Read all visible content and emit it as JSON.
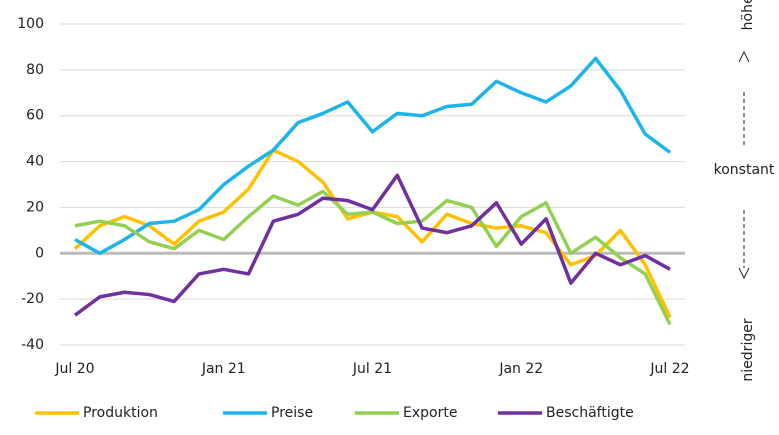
{
  "chart_data": {
    "type": "line",
    "categories": [
      "Jul 20",
      null,
      null,
      null,
      null,
      null,
      "Jan 21",
      null,
      null,
      null,
      null,
      null,
      "Jul 21",
      null,
      null,
      null,
      null,
      null,
      "Jan 22",
      null,
      null,
      null,
      null,
      null,
      "Jul 22"
    ],
    "series": [
      {
        "name": "Produktion",
        "color": "#ffc000",
        "values": [
          2,
          12,
          16,
          12,
          4,
          14,
          18,
          28,
          45,
          40,
          31,
          15,
          18,
          16,
          5,
          17,
          13,
          11,
          12,
          9,
          -5,
          -1,
          10,
          -5,
          -28
        ]
      },
      {
        "name": "Preise",
        "color": "#1cb4ec",
        "values": [
          6,
          0,
          6,
          13,
          14,
          19,
          30,
          38,
          45,
          57,
          61,
          66,
          53,
          61,
          60,
          64,
          65,
          75,
          70,
          66,
          73,
          85,
          71,
          52,
          44
        ]
      },
      {
        "name": "Exporte",
        "color": "#92d050",
        "values": [
          12,
          14,
          12,
          5,
          2,
          10,
          6,
          16,
          25,
          21,
          27,
          17,
          18,
          13,
          14,
          23,
          20,
          3,
          16,
          22,
          0,
          7,
          -2,
          -9,
          -31
        ]
      },
      {
        "name": "Beschäftigte",
        "color": "#7030a0",
        "values": [
          -27,
          -19,
          -17,
          -18,
          -21,
          -9,
          -7,
          -9,
          14,
          17,
          24,
          23,
          19,
          34,
          11,
          9,
          12,
          22,
          4,
          15,
          -13,
          0,
          -5,
          -1,
          -7
        ]
      }
    ],
    "ylim": [
      -40,
      100
    ],
    "yticks": [
      -40,
      -20,
      0,
      20,
      40,
      60,
      80,
      100
    ],
    "grid": true,
    "annotations": {
      "top": "höher",
      "middle": "konstant",
      "bottom": "niedriger"
    },
    "legend": "bottom"
  }
}
